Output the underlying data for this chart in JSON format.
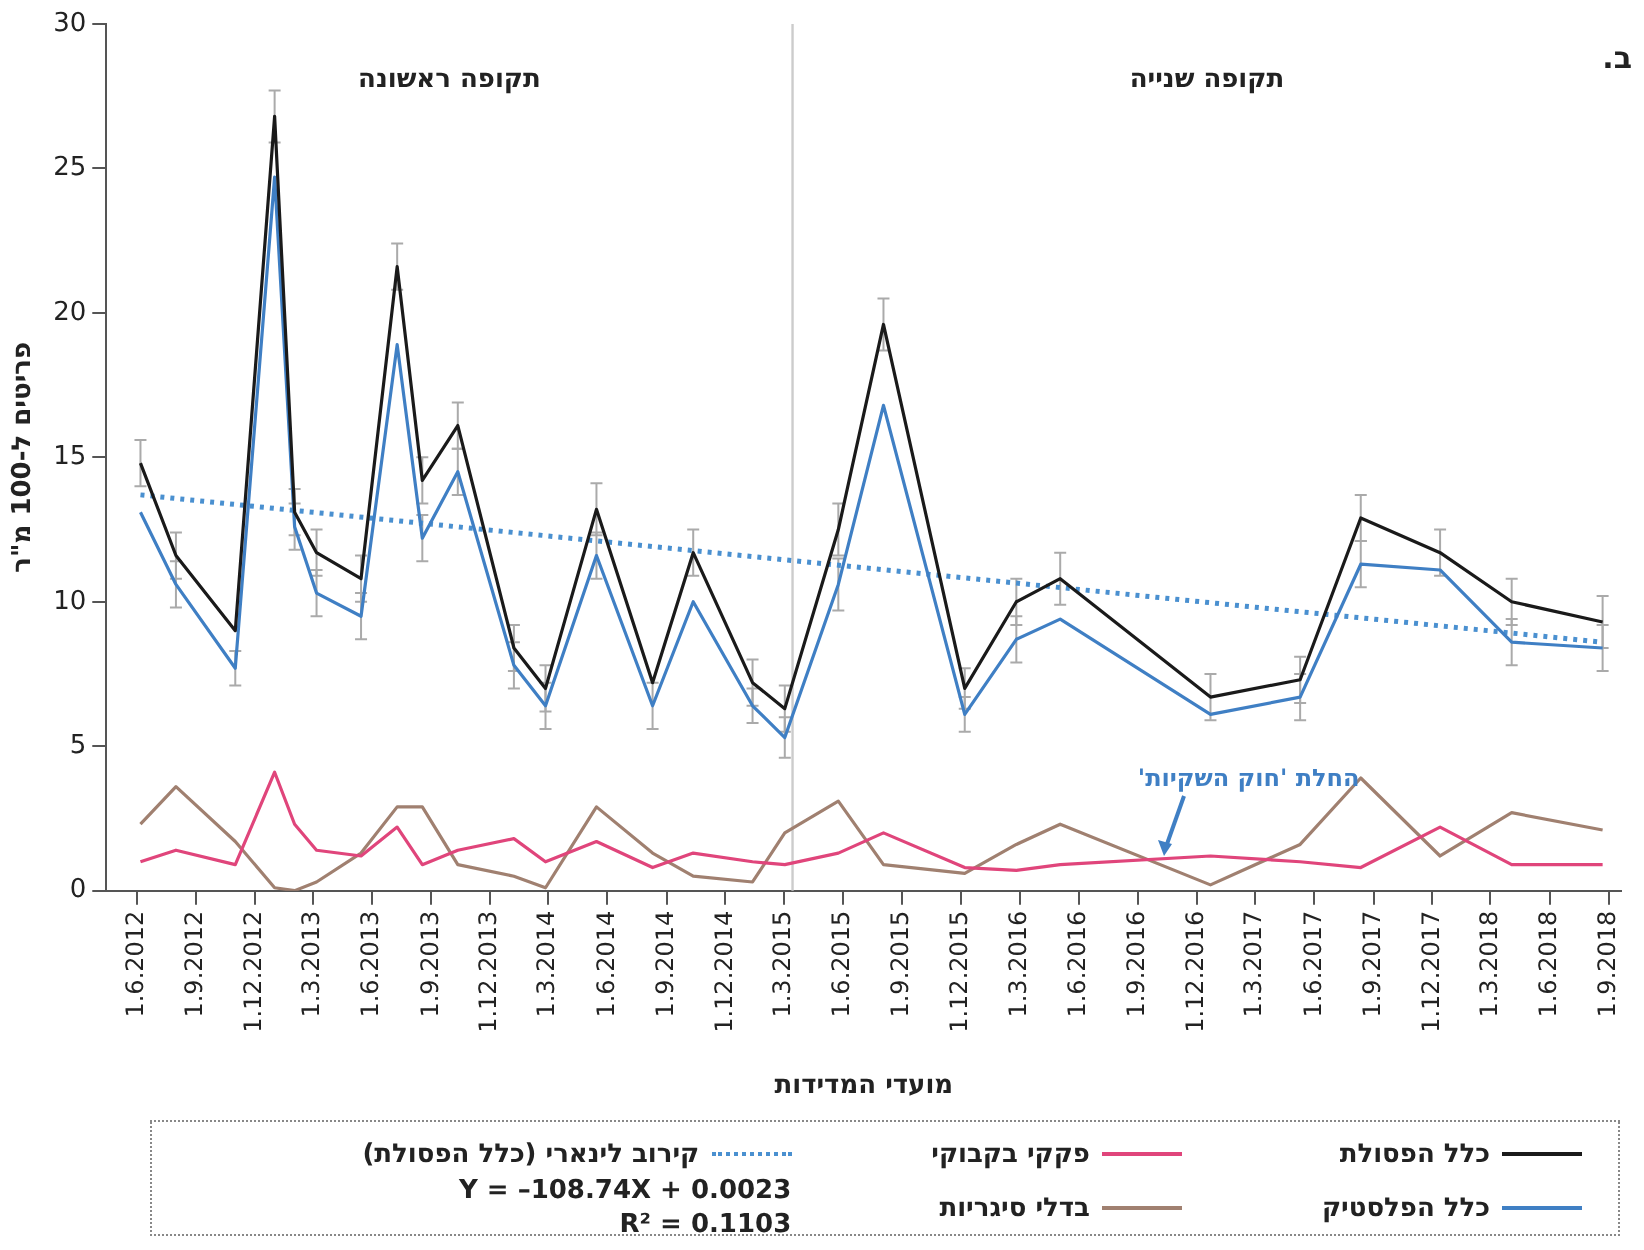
{
  "chart_data": {
    "type": "line",
    "xlabel": "מועדי המדידות",
    "ylabel": "פריטים ל-100 מ\"ר",
    "x": [
      "2012-06-07",
      "2012-08-01",
      "2012-11-01",
      "2013-01-01",
      "2013-02-01",
      "2013-03-07",
      "2013-05-15",
      "2013-07-10",
      "2013-08-18",
      "2013-10-12",
      "2014-01-07",
      "2014-02-25",
      "2014-05-15",
      "2014-08-10",
      "2014-10-12",
      "2015-01-12",
      "2015-03-03",
      "2015-05-25",
      "2015-08-03",
      "2015-12-07",
      "2016-02-25",
      "2016-05-03",
      "2016-12-22",
      "2017-05-10",
      "2017-08-12",
      "2017-12-13",
      "2018-04-03",
      "2018-08-22"
    ],
    "series": [
      {
        "name": "כלל הפסולת",
        "color": "#1a1a1a",
        "values": [
          14.8,
          11.6,
          9.0,
          26.8,
          13.1,
          11.7,
          10.8,
          21.6,
          14.2,
          16.1,
          8.4,
          7.0,
          13.2,
          7.2,
          11.7,
          7.2,
          6.3,
          12.5,
          19.6,
          7.0,
          10.0,
          10.8,
          6.7,
          7.3,
          12.9,
          11.7,
          10.0,
          9.3
        ],
        "errors": [
          0.8,
          0.8,
          null,
          0.9,
          0.8,
          0.8,
          0.8,
          0.8,
          0.8,
          0.8,
          0.8,
          0.8,
          0.9,
          null,
          0.8,
          0.8,
          0.8,
          0.9,
          0.9,
          0.7,
          0.8,
          0.9,
          0.8,
          0.8,
          0.8,
          0.8,
          0.8,
          0.9
        ]
      },
      {
        "name": "כלל הפלסטיק",
        "color": "#3f7fc4",
        "values": [
          13.1,
          10.6,
          7.7,
          24.7,
          12.6,
          10.3,
          9.5,
          18.9,
          12.2,
          14.5,
          7.8,
          6.4,
          11.6,
          6.4,
          10.0,
          6.4,
          5.3,
          10.6,
          16.8,
          6.1,
          8.7,
          9.4,
          6.1,
          6.7,
          11.3,
          11.1,
          8.6,
          8.4
        ],
        "errors": [
          null,
          0.8,
          0.6,
          null,
          0.8,
          0.8,
          0.8,
          null,
          0.8,
          0.8,
          0.8,
          0.8,
          0.8,
          0.8,
          null,
          0.6,
          0.7,
          0.9,
          null,
          0.6,
          0.8,
          null,
          null,
          0.8,
          0.8,
          null,
          0.8,
          0.8
        ]
      },
      {
        "name": "פקקי בקבוקי",
        "color": "#e0457b",
        "values": [
          1.0,
          1.4,
          0.9,
          4.1,
          2.3,
          1.4,
          1.2,
          2.2,
          0.9,
          1.4,
          1.8,
          1.0,
          1.7,
          0.8,
          1.3,
          1.0,
          0.9,
          1.3,
          2.0,
          0.8,
          0.7,
          0.9,
          1.2,
          1.0,
          0.8,
          2.2,
          0.9,
          0.9
        ]
      },
      {
        "name": "בדלי סיגריות",
        "color": "#a08070",
        "values": [
          2.3,
          3.6,
          1.7,
          0.1,
          0.0,
          0.3,
          1.3,
          2.9,
          2.9,
          0.9,
          0.5,
          0.1,
          2.9,
          1.3,
          0.5,
          0.3,
          2.0,
          3.1,
          0.9,
          0.6,
          1.6,
          2.3,
          0.2,
          1.6,
          3.9,
          1.2,
          2.7,
          2.1
        ]
      },
      {
        "name": "קירוב לינארי (כלל הפסולת)",
        "color": "#4a90d0",
        "line_style": "dotted",
        "x": [
          "2012-06-07",
          "2018-08-22"
        ],
        "values": [
          13.7,
          8.6
        ]
      }
    ],
    "xlim": [
      "2012-04-15",
      "2018-09-20"
    ],
    "xticks": [
      {
        "value": "2012-06-01",
        "label": "1.6.2012"
      },
      {
        "value": "2012-09-01",
        "label": "1.9.2012"
      },
      {
        "value": "2012-12-01",
        "label": "1.12.2012"
      },
      {
        "value": "2013-03-01",
        "label": "1.3.2013"
      },
      {
        "value": "2013-06-01",
        "label": "1.6.2013"
      },
      {
        "value": "2013-09-01",
        "label": "1.9.2013"
      },
      {
        "value": "2013-12-01",
        "label": "1.12.2013"
      },
      {
        "value": "2014-03-01",
        "label": "1.3.2014"
      },
      {
        "value": "2014-06-01",
        "label": "1.6.2014"
      },
      {
        "value": "2014-09-01",
        "label": "1.9.2014"
      },
      {
        "value": "2014-12-01",
        "label": "1.12.2014"
      },
      {
        "value": "2015-03-01",
        "label": "1.3.2015"
      },
      {
        "value": "2015-06-01",
        "label": "1.6.2015"
      },
      {
        "value": "2015-09-01",
        "label": "1.9.2015"
      },
      {
        "value": "2015-12-01",
        "label": "1.12.2015"
      },
      {
        "value": "2016-03-01",
        "label": "1.3.2016"
      },
      {
        "value": "2016-06-01",
        "label": "1.6.2016"
      },
      {
        "value": "2016-09-01",
        "label": "1.9.2016"
      },
      {
        "value": "2016-12-01",
        "label": "1.12.2016"
      },
      {
        "value": "2017-03-01",
        "label": "1.3.2017"
      },
      {
        "value": "2017-06-01",
        "label": "1.6.2017"
      },
      {
        "value": "2017-09-01",
        "label": "1.9.2017"
      },
      {
        "value": "2017-12-01",
        "label": "1.12.2017"
      },
      {
        "value": "2018-03-01",
        "label": "1.3.2018"
      },
      {
        "value": "2018-06-01",
        "label": "1.6.2018"
      },
      {
        "value": "2018-09-01",
        "label": "1.9.2018"
      }
    ],
    "ylim": [
      0,
      30
    ],
    "yticks": [
      0,
      5,
      10,
      15,
      20,
      25,
      30
    ],
    "ref_lines": [
      {
        "axis": "x",
        "value": "2015-03-15",
        "color": "#cccccc"
      }
    ],
    "annotations": [
      "ב.",
      "תקופה ראשונה",
      "תקופה שנייה",
      "Y = –108.74X + 0.0023",
      "R² = 0.1103",
      {
        "text": "החלת 'חוק השקיות'",
        "x": "2016-10-12",
        "y": 1.2
      }
    ],
    "grid": false,
    "legend": "bottom",
    "marker": "none",
    "line_style": "solid"
  }
}
